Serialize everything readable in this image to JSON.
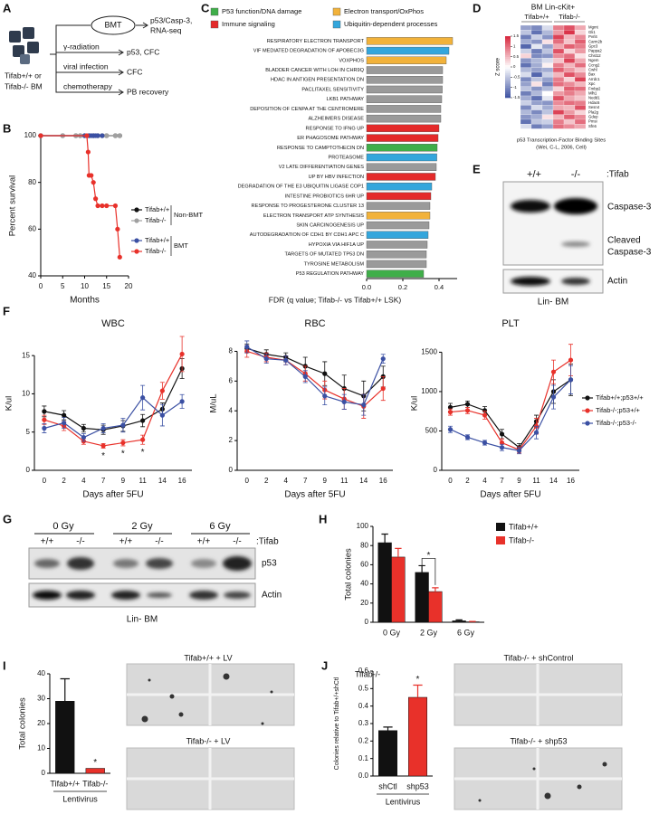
{
  "panel_labels": [
    "A",
    "B",
    "C",
    "D",
    "E",
    "F",
    "G",
    "H",
    "I",
    "J"
  ],
  "panel_a": {
    "sample_lines": [
      "Tifab+/+ or",
      "Tifab-/- BM"
    ],
    "treatments": [
      "BMT",
      "γ-radiation",
      "viral infection",
      "chemotherapy"
    ],
    "outcomes": [
      "p53/Casp-3,",
      "RNA-seq",
      "p53, CFC",
      "CFC",
      "PB recovery"
    ]
  },
  "panel_e": {
    "genotypes": [
      "+/+",
      "-/-"
    ],
    "genotype_label": ":Tifab",
    "bands": [
      "Caspase-3",
      "Cleaved",
      "Caspase-3",
      "Actin"
    ],
    "sample": "Lin- BM"
  },
  "panel_g": {
    "doses": [
      "0 Gy",
      "2 Gy",
      "6 Gy"
    ],
    "genotypes": [
      "+/+",
      "-/-",
      "+/+",
      "-/-",
      "+/+",
      "-/-"
    ],
    "genotype_label": ":Tifab",
    "bands": [
      "p53",
      "Actin"
    ],
    "sample": "Lin- BM"
  },
  "panel_i": {
    "image_labels": [
      "Tifab+/+ + LV",
      "Tifab-/- + LV"
    ]
  },
  "panel_j": {
    "image_labels": [
      "Tifab-/- + shControl",
      "Tifab-/- + shp53"
    ]
  },
  "chart_data": [
    {
      "type": "line",
      "ylabel": "Percent survival",
      "xlabel": "Months",
      "xlim": [
        0,
        20
      ],
      "xticks": [
        0,
        5,
        10,
        15,
        20
      ],
      "ylim": [
        40,
        100
      ],
      "yticks": [
        40,
        60,
        80,
        100
      ],
      "legend_groups": [
        "Non-BMT",
        "BMT"
      ],
      "series": [
        {
          "name": "Tifab+/+",
          "color": "#111111",
          "x": [
            0,
            5,
            8,
            9,
            10,
            11,
            12,
            13,
            14,
            15,
            17,
            18
          ],
          "values": [
            100,
            100,
            100,
            100,
            100,
            100,
            100,
            100,
            100,
            100,
            100,
            100
          ]
        },
        {
          "name": "Tifab-/-",
          "color": "#a0a0a0",
          "x": [
            0,
            5,
            8,
            9,
            10,
            11,
            12,
            13,
            14,
            15,
            17,
            18
          ],
          "values": [
            100,
            100,
            100,
            100,
            100,
            100,
            100,
            100,
            100,
            100,
            100,
            100
          ]
        },
        {
          "name": "Tifab+/+",
          "color": "#3b50a3",
          "x": [
            0,
            10,
            11,
            11.5,
            12,
            12.5,
            13,
            14
          ],
          "values": [
            100,
            100,
            100,
            100,
            100,
            100,
            100,
            100
          ]
        },
        {
          "name": "Tifab-/-",
          "color": "#e8312a",
          "x": [
            0,
            10.5,
            10.8,
            11,
            11.5,
            12,
            12.5,
            13,
            14,
            15,
            17,
            17.5,
            18
          ],
          "values": [
            100,
            100,
            93,
            83,
            83,
            80,
            73,
            70,
            70,
            70,
            70,
            60,
            48
          ]
        }
      ]
    },
    {
      "type": "hbar",
      "xlabel": "FDR (q value; Tifab-/- vs Tifab+/+ LSK)",
      "xlim": [
        0,
        0.5
      ],
      "xticks": [
        {
          "value": 0,
          "label": "0.0"
        },
        0.2,
        0.4
      ],
      "legend": [
        {
          "name": "P53 function/DNA damage",
          "color": "#3fae49"
        },
        {
          "name": "Electron transport/OxPhos",
          "color": "#f2b23a"
        },
        {
          "name": "Immune signaling",
          "color": "#e42a2a"
        },
        {
          "name": "Ubiquitin-dependent processes",
          "color": "#34a6dc"
        }
      ],
      "categories": [
        "RESPIRATORY ELECTRON TRANSPORT",
        "VIF MEDIATED DEGRADATION OF APOBEC3G",
        "VOXPHOS",
        "BLADDER CANCER WITH LOH IN CHR9Q",
        "HDAC IN ANTIGEN PRESENTATION DN",
        "PACLITAXEL SENSITIVITY",
        "LKB1 PATHWAY",
        "DEPOSITION OF CENPA AT THE CENTROMERE",
        "ALZHEIMERS DISEASE",
        "RESPONSE TO IFNG UP",
        "ER PHAGOSOME PATHWAY",
        "RESPONSE TO CAMPTOTHECIN DN",
        "PROTEASOME",
        "V2 LATE DIFFERENTIATION GENES",
        "UP BY HBV INFECTION",
        "DEGRADATION OF THE E3 UBIQUITIN LIGASE COP1",
        "INTESTINE PROBIOTICS 6HR UP",
        "RESPONSE TO PROGESTERONE CLUSTER 13",
        "ELECTRON TRANSPORT ATP SYNTHESIS",
        "SKIN CARCINOGENESIS UP",
        "AUTODEGRADATION OF CDH1 BY CDH1 APC C",
        "HYPOXIA VIA HIF1A UP",
        "TARGETS OF MUTATED TP53 DN",
        "TYROSINE METABOLISM",
        "P53 REGULATION PATHWAY"
      ],
      "values": [
        0.475,
        0.455,
        0.44,
        0.42,
        0.42,
        0.418,
        0.415,
        0.41,
        0.41,
        0.4,
        0.395,
        0.39,
        0.388,
        0.385,
        0.38,
        0.36,
        0.355,
        0.35,
        0.35,
        0.345,
        0.34,
        0.335,
        0.33,
        0.33,
        0.315
      ],
      "bar_colors": [
        "#f2b23a",
        "#34a6dc",
        "#f2b23a",
        "#9a9a9a",
        "#9a9a9a",
        "#9a9a9a",
        "#9a9a9a",
        "#9a9a9a",
        "#9a9a9a",
        "#e42a2a",
        "#e42a2a",
        "#3fae49",
        "#34a6dc",
        "#9a9a9a",
        "#e42a2a",
        "#34a6dc",
        "#e42a2a",
        "#9a9a9a",
        "#f2b23a",
        "#9a9a9a",
        "#34a6dc",
        "#9a9a9a",
        "#9a9a9a",
        "#9a9a9a",
        "#3fae49"
      ]
    },
    {
      "type": "heatmap",
      "title": "BM Lin-cKit+",
      "groups": [
        "Tifab+/+",
        "Tifab-/-"
      ],
      "zlabel": "Z score",
      "zlim": [
        -1.5,
        1.5
      ],
      "zticks": [
        1.5,
        1,
        0.5,
        0,
        -0.5,
        -1,
        -1.5
      ],
      "caption": [
        "p53 Transcription-Factor Binding Sites",
        "(Wei, C-L, 2006, Cell)"
      ],
      "rows": [
        "Mgmt",
        "Gli1",
        "Pvrl4",
        "Carm2b",
        "Gpc3",
        "Pappa2",
        "Chst12",
        "Ngem",
        "Ccng2",
        "Cwhl",
        "Bax",
        "Arrdc1",
        "Xpc",
        "Fmbp2",
        "Mlh1",
        "Nedd1",
        "Hdac6",
        "Sesn4",
        "Pla2g",
        "Gdep",
        "Pmsi",
        "Sfn6"
      ],
      "values": [
        [
          -0.8,
          -1.0,
          -0.3,
          0.9,
          1.2,
          0.6
        ],
        [
          -0.5,
          -1.2,
          -0.6,
          0.7,
          1.4,
          0.3
        ],
        [
          -1.1,
          -0.4,
          -0.9,
          1.3,
          0.5,
          0.8
        ],
        [
          -0.7,
          -0.9,
          0.2,
          1.0,
          0.4,
          1.1
        ],
        [
          -1.3,
          -0.2,
          -0.8,
          0.6,
          1.1,
          0.9
        ],
        [
          -0.4,
          -1.1,
          -0.5,
          1.2,
          0.3,
          0.7
        ],
        [
          0.3,
          -1.0,
          -0.9,
          0.8,
          1.0,
          0.2
        ],
        [
          -0.9,
          -0.6,
          -0.3,
          0.4,
          1.3,
          0.6
        ],
        [
          -1.2,
          -0.7,
          0.1,
          0.9,
          0.5,
          1.0
        ],
        [
          -0.6,
          -0.8,
          -0.7,
          1.1,
          0.7,
          0.4
        ],
        [
          -0.3,
          -1.3,
          -0.4,
          0.5,
          1.2,
          0.8
        ],
        [
          -1.0,
          -0.5,
          -0.8,
          0.9,
          0.3,
          1.3
        ],
        [
          -0.8,
          0.2,
          -1.1,
          1.0,
          0.8,
          0.5
        ],
        [
          -0.5,
          -0.9,
          -0.6,
          0.3,
          1.1,
          1.0
        ],
        [
          -1.1,
          -0.6,
          0.0,
          0.7,
          0.9,
          0.6
        ],
        [
          -0.7,
          -1.2,
          -0.2,
          1.2,
          0.6,
          0.4
        ],
        [
          -0.4,
          -0.8,
          -0.9,
          0.8,
          1.0,
          0.9
        ],
        [
          -1.0,
          -0.3,
          -0.7,
          0.6,
          0.5,
          1.2
        ],
        [
          -0.6,
          -1.0,
          -0.5,
          1.3,
          0.7,
          0.3
        ],
        [
          -0.9,
          -0.7,
          0.2,
          0.5,
          1.1,
          0.8
        ],
        [
          -1.2,
          -0.5,
          -0.4,
          0.9,
          0.4,
          1.0
        ],
        [
          -0.3,
          -1.1,
          -0.8,
          1.0,
          0.8,
          0.6
        ]
      ]
    },
    {
      "type": "line",
      "title": "WBC",
      "ylabel": "K/ul",
      "xlabel": "Days after 5FU",
      "categories": [
        "0",
        "2",
        "4",
        "7",
        "9",
        "11",
        "14",
        "16"
      ],
      "ylim": [
        0,
        17.5
      ],
      "yticks": [
        0,
        5,
        10,
        15
      ],
      "annotations": [
        {
          "text": "*",
          "category": "7"
        },
        {
          "text": "*",
          "category": "9"
        },
        {
          "text": "*",
          "category": "11"
        }
      ],
      "series": [
        {
          "name": "Tifab+/+;p53+/+",
          "color": "#111111",
          "values": [
            7.7,
            7.2,
            5.5,
            5.3,
            5.8,
            6.5,
            8.0,
            13.3
          ],
          "errors": [
            0.7,
            0.6,
            0.5,
            0.6,
            0.7,
            0.8,
            0.8,
            1.3
          ]
        },
        {
          "name": "Tifab-/-;p53+/+",
          "color": "#e8312a",
          "values": [
            6.6,
            5.8,
            3.8,
            3.2,
            3.6,
            4.0,
            10.4,
            15.2
          ],
          "errors": [
            0.6,
            0.6,
            0.4,
            0.3,
            0.4,
            0.6,
            1.1,
            2.3
          ]
        },
        {
          "name": "Tifab-/-;p53-/-",
          "color": "#3b50a3",
          "values": [
            5.5,
            6.2,
            4.3,
            5.5,
            5.9,
            9.5,
            7.2,
            9.0
          ],
          "errors": [
            0.6,
            0.7,
            0.5,
            0.6,
            0.9,
            1.6,
            1.4,
            0.9
          ]
        }
      ]
    },
    {
      "type": "line",
      "title": "RBC",
      "ylabel": "M/uL",
      "xlabel": "Days after 5FU",
      "categories": [
        "0",
        "2",
        "4",
        "7",
        "9",
        "11",
        "14",
        "16"
      ],
      "ylim": [
        0,
        9
      ],
      "yticks": [
        0,
        2,
        4,
        6,
        8
      ],
      "series": [
        {
          "color": "#111111",
          "values": [
            8.2,
            7.8,
            7.6,
            7.0,
            6.5,
            5.5,
            5.0,
            6.3
          ],
          "errors": [
            0.3,
            0.3,
            0.3,
            0.6,
            0.8,
            0.9,
            1.0,
            0.7
          ]
        },
        {
          "color": "#e8312a",
          "values": [
            8.0,
            7.6,
            7.4,
            6.5,
            5.4,
            4.8,
            4.3,
            5.5
          ],
          "errors": [
            0.4,
            0.3,
            0.3,
            0.5,
            0.6,
            0.7,
            0.8,
            0.8
          ]
        },
        {
          "color": "#3b50a3",
          "values": [
            8.3,
            7.5,
            7.4,
            6.3,
            5.0,
            4.6,
            4.4,
            7.5
          ],
          "errors": [
            0.4,
            0.3,
            0.3,
            0.4,
            0.6,
            0.5,
            0.7,
            0.3
          ]
        }
      ]
    },
    {
      "type": "line",
      "title": "PLT",
      "ylabel": "K/ul",
      "xlabel": "Days after 5FU",
      "categories": [
        "0",
        "2",
        "4",
        "7",
        "9",
        "11",
        "14",
        "16"
      ],
      "ylim": [
        0,
        1700
      ],
      "yticks": [
        0,
        500,
        1000,
        1500
      ],
      "series": [
        {
          "color": "#111111",
          "values": [
            800,
            840,
            760,
            460,
            290,
            620,
            1000,
            1150
          ],
          "errors": [
            50,
            40,
            50,
            60,
            50,
            80,
            150,
            200
          ]
        },
        {
          "color": "#e8312a",
          "values": [
            740,
            760,
            700,
            350,
            260,
            560,
            1250,
            1400
          ],
          "errors": [
            40,
            40,
            50,
            50,
            40,
            100,
            150,
            200
          ]
        },
        {
          "color": "#3b50a3",
          "values": [
            520,
            420,
            350,
            290,
            250,
            480,
            930,
            1150
          ],
          "errors": [
            40,
            30,
            30,
            40,
            40,
            80,
            150,
            180
          ]
        }
      ]
    },
    {
      "type": "bar",
      "ylabel": "Total colonies",
      "categories": [
        "0 Gy",
        "2 Gy",
        "6 Gy"
      ],
      "ylim": [
        0,
        100
      ],
      "yticks": [
        0,
        20,
        40,
        60,
        80,
        100
      ],
      "annotations": [
        {
          "text": "*",
          "category": "2 Gy"
        }
      ],
      "series": [
        {
          "name": "Tifab+/+",
          "color": "#111111",
          "values": [
            83,
            52,
            1.5
          ],
          "errors": [
            9,
            7,
            1
          ]
        },
        {
          "name": "Tifab-/-",
          "color": "#e8312a",
          "values": [
            68,
            32,
            0.5
          ],
          "errors": [
            9,
            4,
            0.3
          ]
        }
      ]
    },
    {
      "type": "bar",
      "ylabel": "Total colonies",
      "xlabel": "Lentivirus",
      "categories": [
        "Tifab+/+",
        "Tifab-/-"
      ],
      "values": [
        29,
        2
      ],
      "errors": [
        9,
        null
      ],
      "colors": [
        "#111111",
        "#e8312a"
      ],
      "ylim": [
        0,
        40
      ],
      "yticks": [
        0,
        10,
        20,
        30,
        40
      ],
      "annotations": [
        {
          "text": "*",
          "category": "Tifab-/-"
        }
      ]
    },
    {
      "type": "bar",
      "subtitle": "Tifab-/-",
      "ylabel": "Colonies relative to Tifab+/+shCtl",
      "xlabel": "Lentivirus",
      "categories": [
        "shCtl",
        "shp53"
      ],
      "values": [
        0.26,
        0.45
      ],
      "errors": [
        0.02,
        0.07
      ],
      "colors": [
        "#111111",
        "#e8312a"
      ],
      "ylim": [
        0,
        0.6
      ],
      "yticks": [
        {
          "value": 0,
          "label": "0.0"
        },
        0.1,
        0.2,
        0.3,
        0.4,
        0.5,
        0.6
      ],
      "annotations": [
        {
          "text": "*",
          "category": "shp53"
        }
      ]
    }
  ]
}
